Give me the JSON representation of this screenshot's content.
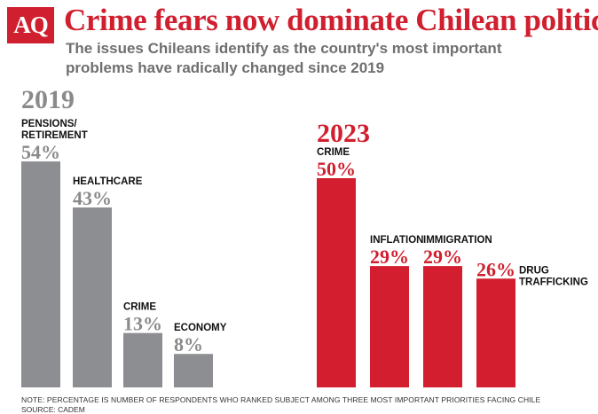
{
  "header": {
    "logo_text": "AQ",
    "title": "Crime fears now dominate Chilean politics",
    "subtitle": "The issues Chileans identify as the country's most important problems have radically changed since 2019"
  },
  "colors": {
    "brand_red": "#d01f2f",
    "gray_bar": "#8c8e91",
    "red_bar": "#d21e2e",
    "gray_text": "#8a8a8a"
  },
  "chart_data": [
    {
      "type": "bar",
      "title": "2019",
      "categories": [
        "PENSIONS/ RETIREMENT",
        "HEALTHCARE",
        "CRIME",
        "ECONOMY"
      ],
      "values": [
        54,
        43,
        13,
        8
      ],
      "value_labels": [
        "54%",
        "43%",
        "13%",
        "8%"
      ],
      "unit": "%",
      "ylim": [
        0,
        54
      ]
    },
    {
      "type": "bar",
      "title": "2023",
      "categories": [
        "CRIME",
        "INFLATION",
        "IMMIGRATION",
        "DRUG TRAFFICKING"
      ],
      "values": [
        50,
        29,
        29,
        26
      ],
      "value_labels": [
        "50%",
        "29%",
        "29%",
        "26%"
      ],
      "unit": "%",
      "ylim": [
        0,
        54
      ]
    }
  ],
  "footer": {
    "note": "NOTE: PERCENTAGE IS NUMBER OF RESPONDENTS WHO RANKED SUBJECT AMONG THREE MOST IMPORTANT PRIORITIES FACING CHILE",
    "source": "SOURCE: CADEM"
  }
}
